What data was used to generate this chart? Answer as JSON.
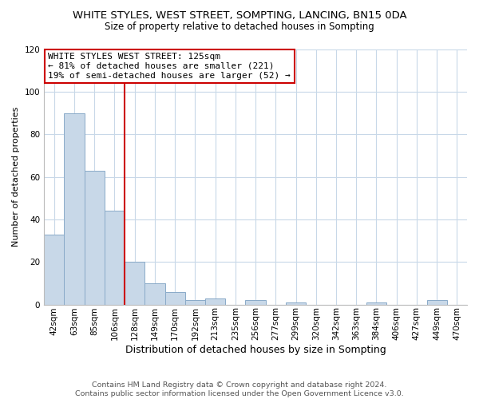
{
  "title": "WHITE STYLES, WEST STREET, SOMPTING, LANCING, BN15 0DA",
  "subtitle": "Size of property relative to detached houses in Sompting",
  "xlabel": "Distribution of detached houses by size in Sompting",
  "ylabel": "Number of detached properties",
  "bar_labels": [
    "42sqm",
    "63sqm",
    "85sqm",
    "106sqm",
    "128sqm",
    "149sqm",
    "170sqm",
    "192sqm",
    "213sqm",
    "235sqm",
    "256sqm",
    "277sqm",
    "299sqm",
    "320sqm",
    "342sqm",
    "363sqm",
    "384sqm",
    "406sqm",
    "427sqm",
    "449sqm",
    "470sqm"
  ],
  "bar_values": [
    33,
    90,
    63,
    44,
    20,
    10,
    6,
    2,
    3,
    0,
    2,
    0,
    1,
    0,
    0,
    0,
    1,
    0,
    0,
    2,
    0
  ],
  "bar_color": "#c8d8e8",
  "bar_edge_color": "#8aaac8",
  "vline_x_index": 4,
  "vline_color": "#cc0000",
  "annotation_lines": [
    "WHITE STYLES WEST STREET: 125sqm",
    "← 81% of detached houses are smaller (221)",
    "19% of semi-detached houses are larger (52) →"
  ],
  "annotation_box_color": "#ffffff",
  "annotation_box_edge_color": "#cc0000",
  "ylim": [
    0,
    120
  ],
  "yticks": [
    0,
    20,
    40,
    60,
    80,
    100,
    120
  ],
  "footer_line1": "Contains HM Land Registry data © Crown copyright and database right 2024.",
  "footer_line2": "Contains public sector information licensed under the Open Government Licence v3.0.",
  "background_color": "#ffffff",
  "grid_color": "#c8d8e8",
  "title_fontsize": 9.5,
  "subtitle_fontsize": 8.5,
  "xlabel_fontsize": 9,
  "ylabel_fontsize": 8,
  "tick_fontsize": 7.5,
  "annotation_fontsize": 8,
  "footer_fontsize": 6.8
}
